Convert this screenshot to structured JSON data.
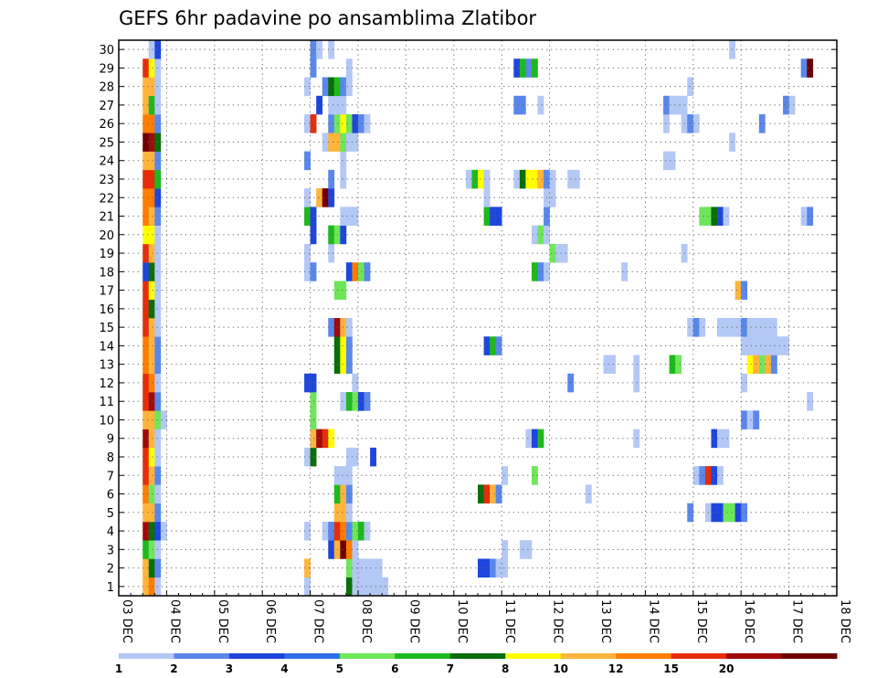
{
  "chart_data": {
    "type": "heatmap",
    "title": "GEFS 6hr padavine po ansamblima Zlatibor",
    "xlabel": "",
    "ylabel": "",
    "x_start_day": 3,
    "x_end_day": 18,
    "x_tick_labels": [
      "03 DEC",
      "04 DEC",
      "05 DEC",
      "06 DEC",
      "07 DEC",
      "08 DEC",
      "09 DEC",
      "10 DEC",
      "11 DEC",
      "12 DEC",
      "13 DEC",
      "14 DEC",
      "15 DEC",
      "16 DEC",
      "17 DEC",
      "18 DEC"
    ],
    "y_tick_labels": [
      "1",
      "2",
      "3",
      "4",
      "5",
      "6",
      "7",
      "8",
      "9",
      "10",
      "11",
      "12",
      "13",
      "14",
      "15",
      "16",
      "17",
      "18",
      "19",
      "20",
      "21",
      "22",
      "23",
      "24",
      "25",
      "26",
      "27",
      "28",
      "29",
      "30"
    ],
    "grid": true,
    "colorbar": {
      "labels": [
        "1",
        "2",
        "3",
        "4",
        "5",
        "6",
        "7",
        "8",
        "10",
        "12",
        "15",
        "20"
      ],
      "colors": [
        "#b4c8f5",
        "#5a87eb",
        "#1e46dc",
        "#2d6ee6",
        "#6ee65a",
        "#1eb91e",
        "#0a6e0a",
        "#ffff00",
        "#ffb43c",
        "#ff7d00",
        "#e62d0a",
        "#a00a0a",
        "#6e0000"
      ]
    },
    "palette": {
      "a": "#b4c8f5",
      "b": "#5a87eb",
      "c": "#1e46dc",
      "d": "#6ee65a",
      "e": "#1eb91e",
      "f": "#0a6e0a",
      "g": "#ffff00",
      "h": "#ffb43c",
      "i": "#ff7d00",
      "j": "#e62d0a",
      "k": "#a00a0a",
      "l": "#6e0000"
    },
    "cells": {
      "1": [
        [
          4,
          "h"
        ],
        [
          5,
          "i"
        ],
        [
          6,
          "a"
        ],
        [
          31,
          "a"
        ],
        [
          38,
          "f"
        ],
        [
          39,
          "a"
        ],
        [
          40,
          "a"
        ],
        [
          41,
          "a"
        ],
        [
          42,
          "a"
        ],
        [
          43,
          "a"
        ],
        [
          44,
          "a"
        ]
      ],
      "2": [
        [
          4,
          "h"
        ],
        [
          5,
          "f"
        ],
        [
          6,
          "b"
        ],
        [
          31,
          "h"
        ],
        [
          38,
          "d"
        ],
        [
          39,
          "a"
        ],
        [
          40,
          "a"
        ],
        [
          41,
          "a"
        ],
        [
          42,
          "a"
        ],
        [
          43,
          "a"
        ],
        [
          60,
          "c"
        ],
        [
          61,
          "c"
        ],
        [
          62,
          "b"
        ],
        [
          63,
          "a"
        ],
        [
          64,
          "a"
        ]
      ],
      "3": [
        [
          4,
          "e"
        ],
        [
          5,
          "d"
        ],
        [
          6,
          "a"
        ],
        [
          35,
          "c"
        ],
        [
          36,
          "h"
        ],
        [
          37,
          "l"
        ],
        [
          38,
          "i"
        ],
        [
          39,
          "a"
        ],
        [
          64,
          "a"
        ],
        [
          67,
          "a"
        ],
        [
          68,
          "a"
        ]
      ],
      "4": [
        [
          4,
          "k"
        ],
        [
          5,
          "f"
        ],
        [
          6,
          "c"
        ],
        [
          7,
          "a"
        ],
        [
          31,
          "a"
        ],
        [
          34,
          "a"
        ],
        [
          35,
          "b"
        ],
        [
          36,
          "j"
        ],
        [
          37,
          "i"
        ],
        [
          38,
          "b"
        ],
        [
          39,
          "d"
        ],
        [
          40,
          "e"
        ],
        [
          41,
          "a"
        ]
      ],
      "5": [
        [
          4,
          "h"
        ],
        [
          5,
          "h"
        ],
        [
          6,
          "b"
        ],
        [
          36,
          "h"
        ],
        [
          37,
          "h"
        ],
        [
          38,
          "a"
        ],
        [
          95,
          "b"
        ],
        [
          98,
          "a"
        ],
        [
          99,
          "c"
        ],
        [
          100,
          "c"
        ],
        [
          101,
          "d"
        ],
        [
          102,
          "d"
        ],
        [
          103,
          "c"
        ],
        [
          104,
          "b"
        ]
      ],
      "6": [
        [
          4,
          "i"
        ],
        [
          5,
          "d"
        ],
        [
          6,
          "a"
        ],
        [
          36,
          "e"
        ],
        [
          37,
          "h"
        ],
        [
          38,
          "b"
        ],
        [
          60,
          "f"
        ],
        [
          61,
          "j"
        ],
        [
          62,
          "h"
        ],
        [
          63,
          "b"
        ],
        [
          78,
          "a"
        ]
      ],
      "7": [
        [
          4,
          "j"
        ],
        [
          5,
          "h"
        ],
        [
          6,
          "b"
        ],
        [
          36,
          "a"
        ],
        [
          37,
          "a"
        ],
        [
          38,
          "a"
        ],
        [
          64,
          "a"
        ],
        [
          69,
          "d"
        ],
        [
          96,
          "a"
        ],
        [
          97,
          "b"
        ],
        [
          98,
          "j"
        ],
        [
          99,
          "c"
        ],
        [
          100,
          "a"
        ]
      ],
      "8": [
        [
          4,
          "j"
        ],
        [
          5,
          "g"
        ],
        [
          6,
          "a"
        ],
        [
          31,
          "a"
        ],
        [
          32,
          "f"
        ],
        [
          38,
          "a"
        ],
        [
          39,
          "a"
        ],
        [
          42,
          "c"
        ]
      ],
      "9": [
        [
          4,
          "k"
        ],
        [
          5,
          "h"
        ],
        [
          6,
          "a"
        ],
        [
          32,
          "h"
        ],
        [
          33,
          "k"
        ],
        [
          34,
          "j"
        ],
        [
          35,
          "g"
        ],
        [
          68,
          "a"
        ],
        [
          69,
          "c"
        ],
        [
          70,
          "e"
        ],
        [
          86,
          "a"
        ],
        [
          99,
          "c"
        ],
        [
          100,
          "a"
        ],
        [
          101,
          "a"
        ]
      ],
      "10": [
        [
          4,
          "h"
        ],
        [
          5,
          "h"
        ],
        [
          6,
          "d"
        ],
        [
          7,
          "a"
        ],
        [
          32,
          "d"
        ],
        [
          104,
          "b"
        ],
        [
          105,
          "a"
        ],
        [
          106,
          "b"
        ]
      ],
      "11": [
        [
          4,
          "j"
        ],
        [
          5,
          "k"
        ],
        [
          6,
          "b"
        ],
        [
          32,
          "d"
        ],
        [
          37,
          "a"
        ],
        [
          38,
          "e"
        ],
        [
          39,
          "d"
        ],
        [
          40,
          "c"
        ],
        [
          41,
          "b"
        ],
        [
          115,
          "a"
        ]
      ],
      "12": [
        [
          4,
          "j"
        ],
        [
          5,
          "i"
        ],
        [
          6,
          "a"
        ],
        [
          31,
          "c"
        ],
        [
          32,
          "c"
        ],
        [
          39,
          "a"
        ],
        [
          75,
          "b"
        ],
        [
          86,
          "a"
        ],
        [
          104,
          "a"
        ]
      ],
      "13": [
        [
          4,
          "i"
        ],
        [
          5,
          "h"
        ],
        [
          6,
          "b"
        ],
        [
          36,
          "f"
        ],
        [
          37,
          "g"
        ],
        [
          38,
          "b"
        ],
        [
          81,
          "a"
        ],
        [
          82,
          "a"
        ],
        [
          86,
          "a"
        ],
        [
          92,
          "e"
        ],
        [
          93,
          "d"
        ],
        [
          105,
          "g"
        ],
        [
          106,
          "h"
        ],
        [
          107,
          "d"
        ],
        [
          108,
          "h"
        ],
        [
          109,
          "b"
        ]
      ],
      "14": [
        [
          4,
          "i"
        ],
        [
          5,
          "h"
        ],
        [
          6,
          "b"
        ],
        [
          36,
          "f"
        ],
        [
          37,
          "g"
        ],
        [
          38,
          "b"
        ],
        [
          61,
          "c"
        ],
        [
          62,
          "e"
        ],
        [
          63,
          "b"
        ],
        [
          104,
          "a"
        ],
        [
          105,
          "a"
        ],
        [
          106,
          "a"
        ],
        [
          107,
          "a"
        ],
        [
          108,
          "a"
        ],
        [
          109,
          "a"
        ],
        [
          110,
          "a"
        ],
        [
          111,
          "a"
        ]
      ],
      "15": [
        [
          4,
          "j"
        ],
        [
          5,
          "h"
        ],
        [
          6,
          "a"
        ],
        [
          35,
          "b"
        ],
        [
          36,
          "k"
        ],
        [
          37,
          "h"
        ],
        [
          38,
          "a"
        ],
        [
          95,
          "a"
        ],
        [
          96,
          "b"
        ],
        [
          97,
          "a"
        ],
        [
          100,
          "a"
        ],
        [
          101,
          "a"
        ],
        [
          102,
          "a"
        ],
        [
          103,
          "a"
        ],
        [
          104,
          "b"
        ],
        [
          105,
          "a"
        ],
        [
          106,
          "a"
        ],
        [
          107,
          "a"
        ],
        [
          108,
          "a"
        ],
        [
          109,
          "a"
        ]
      ],
      "16": [
        [
          4,
          "j"
        ],
        [
          5,
          "f"
        ],
        [
          6,
          "a"
        ]
      ],
      "17": [
        [
          4,
          "j"
        ],
        [
          5,
          "g"
        ],
        [
          6,
          "a"
        ],
        [
          36,
          "d"
        ],
        [
          37,
          "d"
        ],
        [
          103,
          "h"
        ],
        [
          104,
          "b"
        ]
      ],
      "18": [
        [
          4,
          "c"
        ],
        [
          5,
          "f"
        ],
        [
          6,
          "a"
        ],
        [
          31,
          "a"
        ],
        [
          32,
          "b"
        ],
        [
          38,
          "c"
        ],
        [
          39,
          "i"
        ],
        [
          40,
          "d"
        ],
        [
          41,
          "b"
        ],
        [
          69,
          "e"
        ],
        [
          70,
          "b"
        ],
        [
          71,
          "a"
        ],
        [
          84,
          "a"
        ]
      ],
      "19": [
        [
          4,
          "j"
        ],
        [
          5,
          "h"
        ],
        [
          6,
          "a"
        ],
        [
          31,
          "a"
        ],
        [
          35,
          "a"
        ],
        [
          72,
          "d"
        ],
        [
          73,
          "a"
        ],
        [
          74,
          "a"
        ],
        [
          94,
          "a"
        ]
      ],
      "20": [
        [
          4,
          "g"
        ],
        [
          5,
          "g"
        ],
        [
          6,
          "a"
        ],
        [
          32,
          "c"
        ],
        [
          35,
          "e"
        ],
        [
          36,
          "d"
        ],
        [
          37,
          "c"
        ],
        [
          69,
          "a"
        ],
        [
          70,
          "d"
        ],
        [
          71,
          "a"
        ]
      ],
      "21": [
        [
          4,
          "i"
        ],
        [
          5,
          "h"
        ],
        [
          6,
          "b"
        ],
        [
          31,
          "e"
        ],
        [
          32,
          "c"
        ],
        [
          37,
          "a"
        ],
        [
          38,
          "a"
        ],
        [
          39,
          "a"
        ],
        [
          61,
          "e"
        ],
        [
          62,
          "c"
        ],
        [
          63,
          "c"
        ],
        [
          71,
          "b"
        ],
        [
          97,
          "d"
        ],
        [
          98,
          "d"
        ],
        [
          99,
          "f"
        ],
        [
          100,
          "c"
        ],
        [
          101,
          "a"
        ],
        [
          114,
          "a"
        ],
        [
          115,
          "b"
        ]
      ],
      "22": [
        [
          4,
          "i"
        ],
        [
          5,
          "i"
        ],
        [
          6,
          "c"
        ],
        [
          31,
          "a"
        ],
        [
          33,
          "h"
        ],
        [
          34,
          "l"
        ],
        [
          35,
          "c"
        ],
        [
          61,
          "a"
        ],
        [
          71,
          "a"
        ],
        [
          72,
          "a"
        ]
      ],
      "23": [
        [
          4,
          "j"
        ],
        [
          5,
          "j"
        ],
        [
          6,
          "e"
        ],
        [
          35,
          "b"
        ],
        [
          37,
          "a"
        ],
        [
          58,
          "a"
        ],
        [
          59,
          "e"
        ],
        [
          60,
          "g"
        ],
        [
          61,
          "a"
        ],
        [
          66,
          "a"
        ],
        [
          67,
          "f"
        ],
        [
          68,
          "g"
        ],
        [
          69,
          "g"
        ],
        [
          70,
          "h"
        ],
        [
          71,
          "b"
        ],
        [
          72,
          "a"
        ],
        [
          75,
          "a"
        ],
        [
          76,
          "a"
        ]
      ],
      "24": [
        [
          4,
          "h"
        ],
        [
          5,
          "h"
        ],
        [
          6,
          "b"
        ],
        [
          31,
          "b"
        ],
        [
          37,
          "a"
        ],
        [
          91,
          "a"
        ],
        [
          92,
          "a"
        ]
      ],
      "25": [
        [
          4,
          "l"
        ],
        [
          5,
          "k"
        ],
        [
          6,
          "f"
        ],
        [
          34,
          "a"
        ],
        [
          35,
          "h"
        ],
        [
          36,
          "h"
        ],
        [
          37,
          "d"
        ],
        [
          38,
          "a"
        ],
        [
          39,
          "a"
        ],
        [
          102,
          "a"
        ]
      ],
      "26": [
        [
          4,
          "i"
        ],
        [
          5,
          "i"
        ],
        [
          6,
          "b"
        ],
        [
          31,
          "a"
        ],
        [
          32,
          "j"
        ],
        [
          35,
          "b"
        ],
        [
          36,
          "d"
        ],
        [
          37,
          "g"
        ],
        [
          38,
          "d"
        ],
        [
          39,
          "c"
        ],
        [
          40,
          "b"
        ],
        [
          41,
          "a"
        ],
        [
          91,
          "a"
        ],
        [
          94,
          "a"
        ],
        [
          95,
          "b"
        ],
        [
          96,
          "a"
        ],
        [
          107,
          "b"
        ]
      ],
      "27": [
        [
          4,
          "h"
        ],
        [
          5,
          "e"
        ],
        [
          6,
          "a"
        ],
        [
          33,
          "c"
        ],
        [
          35,
          "a"
        ],
        [
          36,
          "a"
        ],
        [
          37,
          "a"
        ],
        [
          66,
          "b"
        ],
        [
          67,
          "b"
        ],
        [
          70,
          "a"
        ],
        [
          91,
          "b"
        ],
        [
          92,
          "a"
        ],
        [
          93,
          "a"
        ],
        [
          94,
          "a"
        ],
        [
          111,
          "b"
        ],
        [
          112,
          "a"
        ]
      ],
      "28": [
        [
          4,
          "h"
        ],
        [
          5,
          "h"
        ],
        [
          6,
          "a"
        ],
        [
          31,
          "a"
        ],
        [
          34,
          "b"
        ],
        [
          35,
          "f"
        ],
        [
          36,
          "e"
        ],
        [
          37,
          "b"
        ],
        [
          38,
          "a"
        ],
        [
          95,
          "a"
        ]
      ],
      "29": [
        [
          4,
          "j"
        ],
        [
          5,
          "g"
        ],
        [
          6,
          "a"
        ],
        [
          32,
          "b"
        ],
        [
          38,
          "a"
        ],
        [
          66,
          "c"
        ],
        [
          67,
          "e"
        ],
        [
          68,
          "b"
        ],
        [
          69,
          "e"
        ],
        [
          114,
          "b"
        ],
        [
          115,
          "l"
        ]
      ],
      "30": [
        [
          5,
          "a"
        ],
        [
          6,
          "c"
        ],
        [
          32,
          "b"
        ],
        [
          33,
          "a"
        ],
        [
          35,
          "a"
        ],
        [
          102,
          "a"
        ]
      ]
    }
  }
}
